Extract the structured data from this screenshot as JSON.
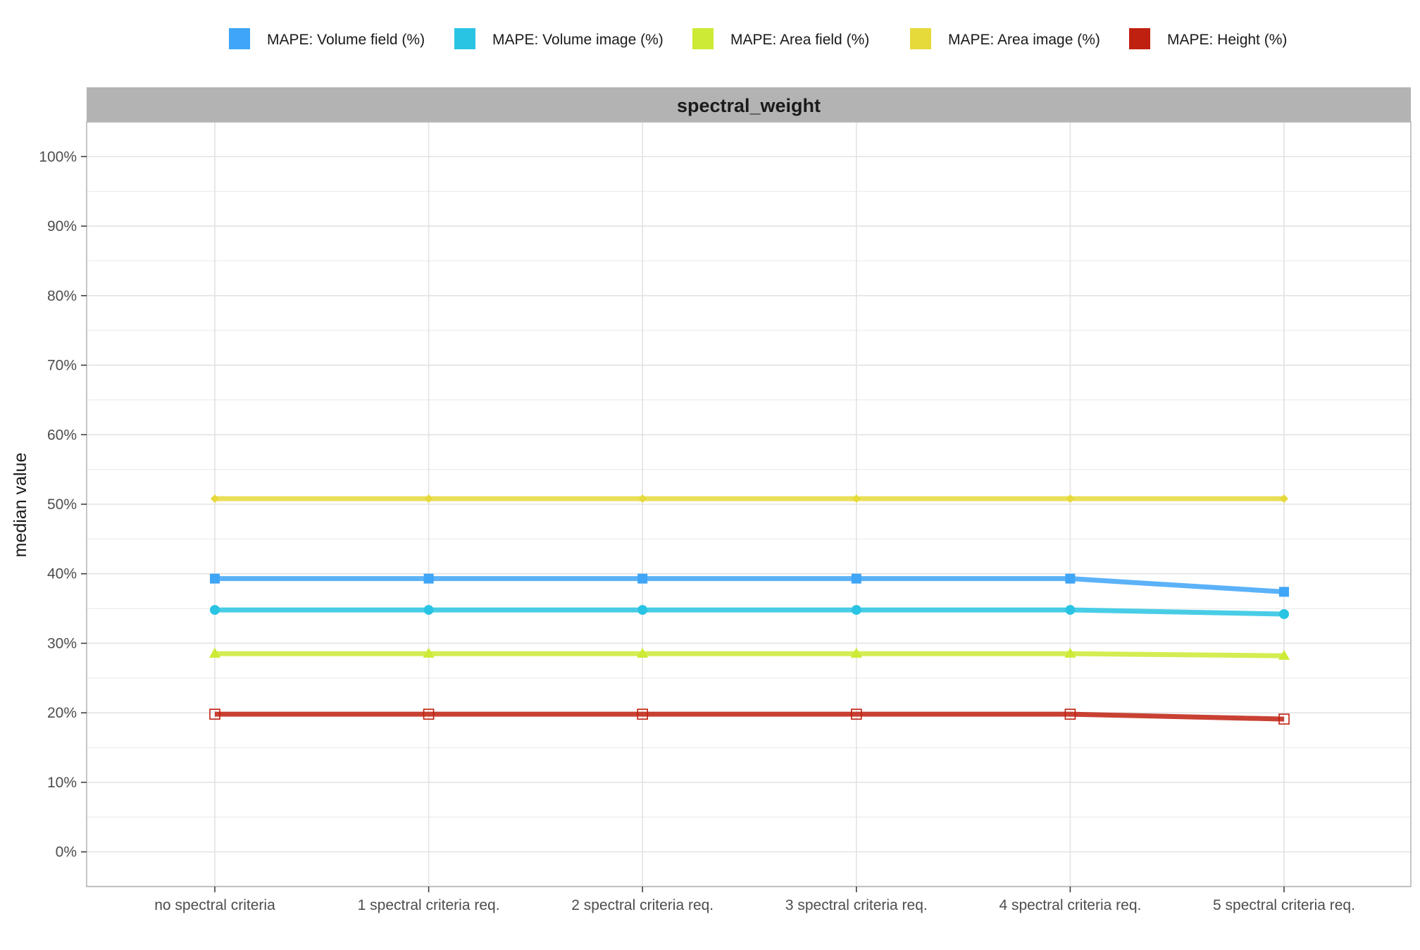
{
  "chart_data": {
    "type": "line",
    "panel_title": "spectral_weight",
    "xlabel": "",
    "ylabel": "median value",
    "ylim": [
      -5,
      105
    ],
    "yticks": [
      0,
      10,
      20,
      30,
      40,
      50,
      60,
      70,
      80,
      90,
      100
    ],
    "ytick_labels": [
      "0%",
      "10%",
      "20%",
      "30%",
      "40%",
      "50%",
      "60%",
      "70%",
      "80%",
      "90%",
      "100%"
    ],
    "categories": [
      "no spectral criteria",
      "1 spectral criteria req.",
      "2 spectral criteria req.",
      "3 spectral criteria req.",
      "4 spectral criteria req.",
      "5 spectral criteria req."
    ],
    "legend_position": "top",
    "grid": true,
    "series": [
      {
        "name": "MAPE: Volume field (%)",
        "color": "#3ea5f7",
        "marker": "square",
        "values": [
          39.3,
          39.3,
          39.3,
          39.3,
          39.3,
          37.4
        ]
      },
      {
        "name": "MAPE: Volume image (%)",
        "color": "#29c4e3",
        "marker": "circle",
        "values": [
          34.8,
          34.8,
          34.8,
          34.8,
          34.8,
          34.2
        ]
      },
      {
        "name": "MAPE: Area field (%)",
        "color": "#cdea34",
        "marker": "triangle",
        "values": [
          28.5,
          28.5,
          28.5,
          28.5,
          28.5,
          28.2
        ]
      },
      {
        "name": "MAPE: Area image (%)",
        "color": "#e6d93a",
        "marker": "diamond",
        "values": [
          50.8,
          50.8,
          50.8,
          50.8,
          50.8,
          50.8
        ]
      },
      {
        "name": "MAPE: Height (%)",
        "color": "#c0200f",
        "marker": "open-square",
        "values": [
          19.8,
          19.8,
          19.8,
          19.8,
          19.8,
          19.1
        ]
      }
    ]
  }
}
